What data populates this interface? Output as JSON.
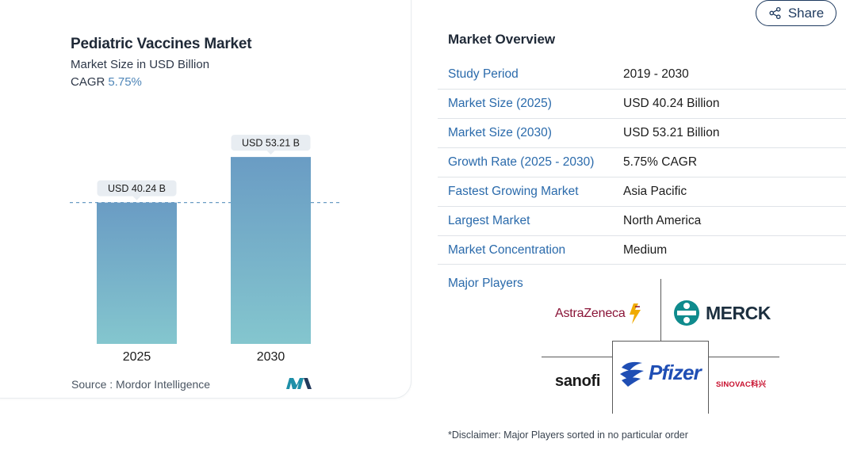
{
  "chart": {
    "title": "Pediatric Vaccines Market",
    "subtitle": "Market Size in USD Billion",
    "cagr_label": "CAGR",
    "cagr_value": "5.75%",
    "source": "Source :  Mordor Intelligence",
    "logo_name": "mordor-intelligence-logo"
  },
  "chart_data": {
    "type": "bar",
    "categories": [
      "2025",
      "2030"
    ],
    "values": [
      40.24,
      53.21
    ],
    "data_labels": [
      "USD 40.24 B",
      "USD 53.21 B"
    ],
    "title": "Pediatric Vaccines Market",
    "ylabel": "Market Size in USD Billion",
    "ylim": [
      0,
      60
    ],
    "reference_line_value": 40.24,
    "grid": false,
    "colors": {
      "bar_top": "#6a9cc4",
      "bar_bottom": "#84c6ce",
      "label_bg": "#e8edf2",
      "ref_line": "#6a9cc4"
    }
  },
  "share": {
    "label": "Share",
    "icon": "share-icon"
  },
  "overview": {
    "title": "Market Overview",
    "rows": [
      {
        "label": "Study Period",
        "value": "2019 - 2030"
      },
      {
        "label": "Market Size (2025)",
        "value": "USD 40.24 Billion"
      },
      {
        "label": "Market Size (2030)",
        "value": "USD 53.21 Billion"
      },
      {
        "label": "Growth Rate (2025 - 2030)",
        "value": "5.75% CAGR"
      },
      {
        "label": "Fastest Growing Market",
        "value": "Asia Pacific"
      },
      {
        "label": "Largest Market",
        "value": "North America"
      },
      {
        "label": "Market Concentration",
        "value": "Medium"
      }
    ],
    "major_players_label": "Major Players",
    "players": [
      "AstraZeneca",
      "MERCK",
      "sanofi",
      "Pfizer",
      "SINOVAC科兴"
    ],
    "disclaimer": "*Disclaimer: Major Players sorted in no particular order"
  },
  "colors": {
    "accent_link": "#2a6aab",
    "share_border": "#1e3a5f",
    "cagr": "#4f86b8"
  }
}
